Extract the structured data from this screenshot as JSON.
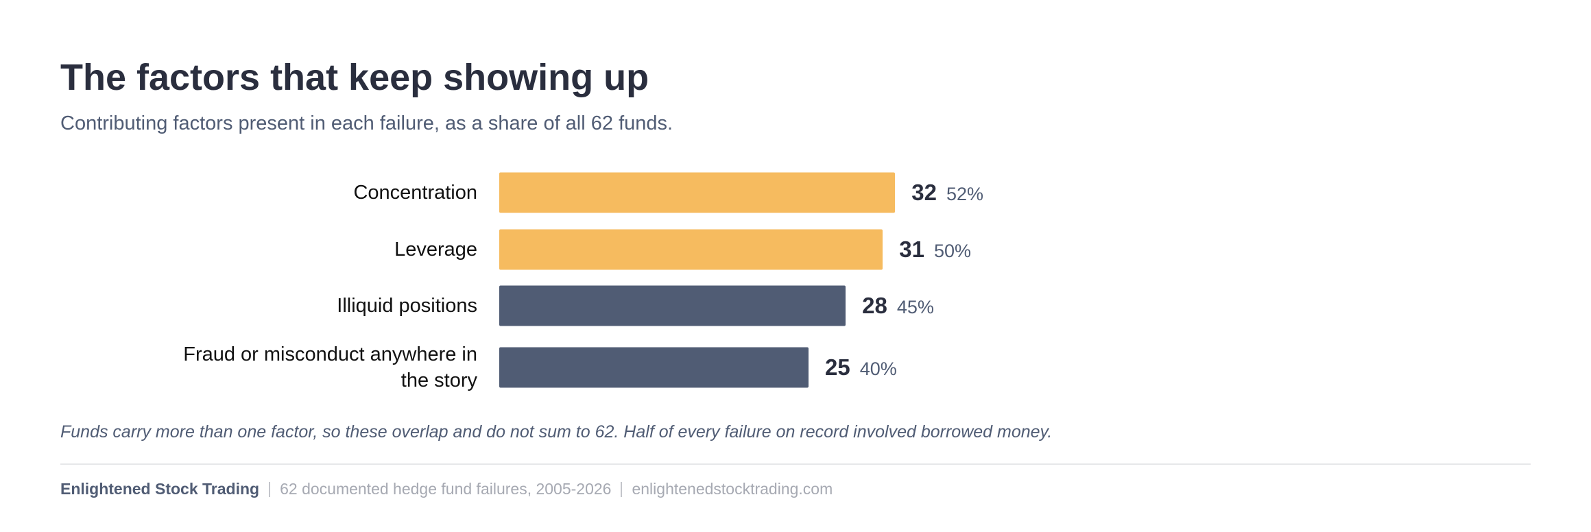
{
  "chart_data": {
    "type": "bar",
    "orientation": "horizontal",
    "title": "The factors that keep showing up",
    "subtitle": "Contributing factors present in each failure, as a share of all 62 funds.",
    "categories": [
      "Concentration",
      "Leverage",
      "Illiquid positions",
      "Fraud or misconduct anywhere in the story"
    ],
    "values": [
      32,
      31,
      28,
      25
    ],
    "colors": [
      "#f6bb5f",
      "#f6bb5f",
      "#505c74",
      "#505c74"
    ],
    "shares": [
      52,
      50,
      45,
      40
    ],
    "share_labels": [
      "52%",
      "50%",
      "45%",
      "40%"
    ],
    "note": "Funds carry more than one factor, so these overlap and do not sum to 62. Half of every failure on record involved borrowed money."
  },
  "footer": {
    "brand": "Enlightened Stock Trading",
    "items": [
      "62 documented hedge fund failures, 2005-2026",
      "enlightenedstocktrading.com"
    ]
  }
}
